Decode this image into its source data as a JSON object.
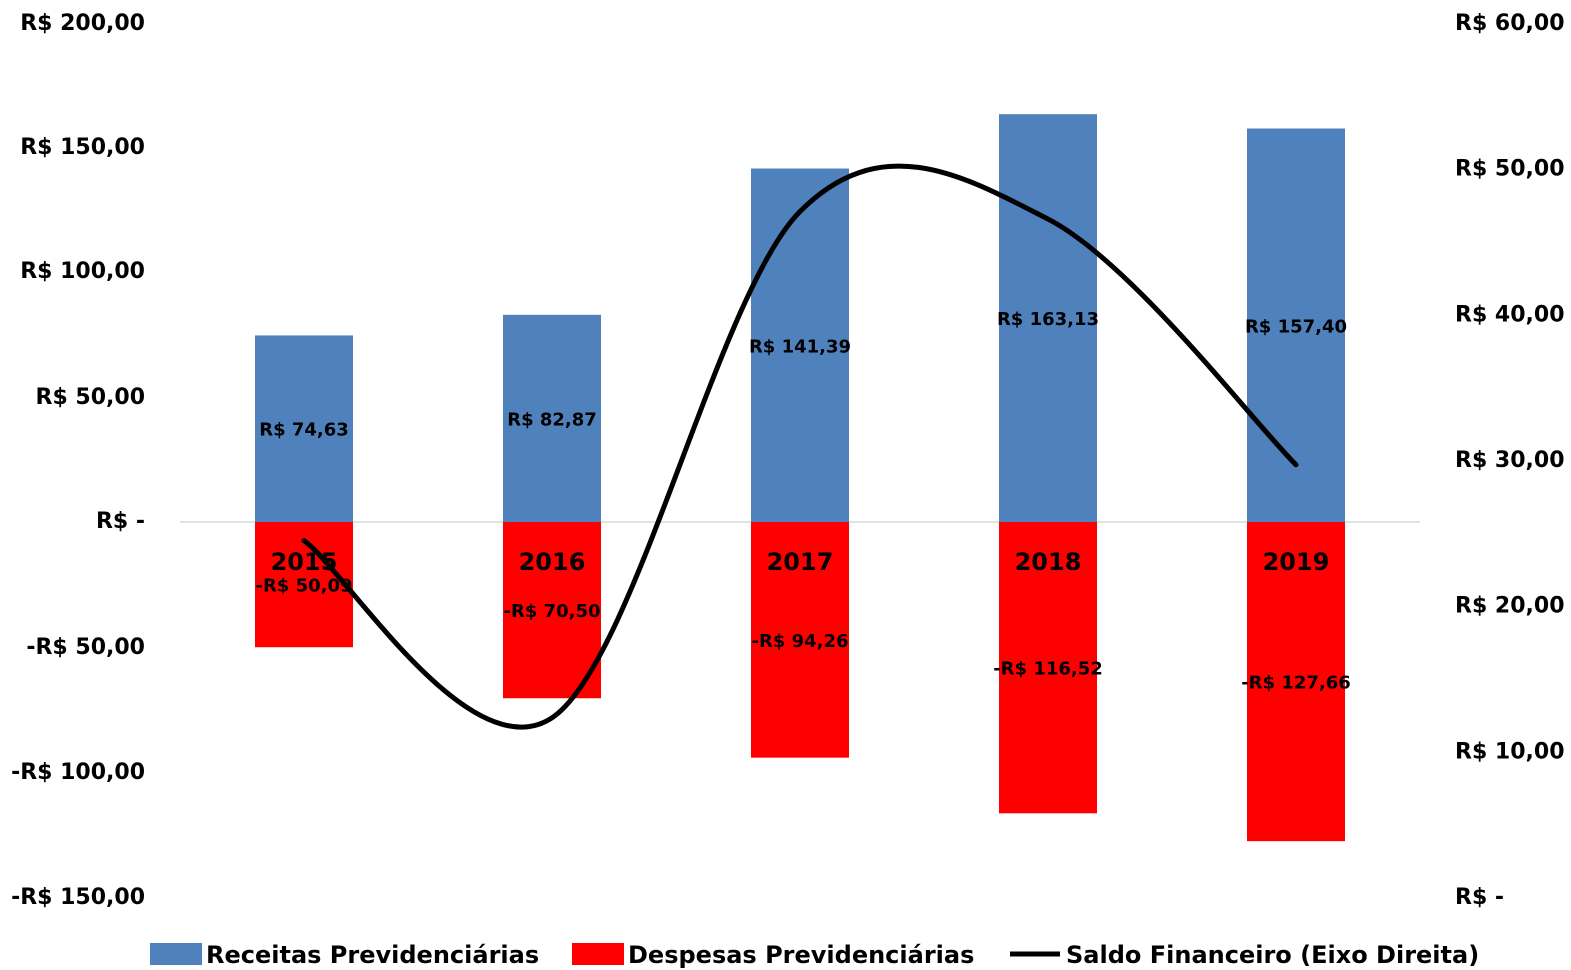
{
  "chart_data": {
    "type": "bar",
    "categories": [
      "2015",
      "2016",
      "2017",
      "2018",
      "2019"
    ],
    "series": [
      {
        "name": "Receitas Previdenciárias",
        "type": "bar",
        "axis": "left",
        "color": "#4F81BD",
        "values": [
          74.63,
          82.87,
          141.39,
          163.13,
          157.4
        ],
        "labels": [
          "R$ 74,63",
          "R$ 82,87",
          "R$ 141,39",
          "R$ 163,13",
          "R$ 157,40"
        ]
      },
      {
        "name": "Despesas Previdenciárias",
        "type": "bar",
        "axis": "left",
        "color": "#FF0000",
        "values": [
          -50.09,
          -70.5,
          -94.26,
          -116.52,
          -127.66
        ],
        "labels": [
          "-R$ 50,09",
          "-R$ 70,50",
          "-R$ 94,26",
          "-R$ 116,52",
          "-R$ 127,66"
        ]
      },
      {
        "name": "Saldo Financeiro (Eixo Direita)",
        "type": "line",
        "axis": "right",
        "color": "#000000",
        "values": [
          24.54,
          12.37,
          47.13,
          46.61,
          29.74
        ]
      }
    ],
    "left_axis": {
      "range": [
        -150,
        200
      ],
      "ticks": [
        200,
        150,
        100,
        50,
        0,
        -50,
        -100,
        -150
      ],
      "tick_labels": [
        "R$ 200,00",
        "R$ 150,00",
        "R$ 100,00",
        "R$ 50,00",
        "R$ -",
        "-R$ 50,00",
        "-R$ 100,00",
        "-R$ 150,00"
      ]
    },
    "right_axis": {
      "range": [
        0,
        60
      ],
      "ticks": [
        60,
        50,
        40,
        30,
        20,
        10,
        0
      ],
      "tick_labels": [
        "R$ 60,00",
        "R$ 50,00",
        "R$ 40,00",
        "R$ 30,00",
        "R$ 20,00",
        "R$ 10,00",
        "R$ -"
      ]
    },
    "grid": false,
    "legend_position": "bottom"
  }
}
